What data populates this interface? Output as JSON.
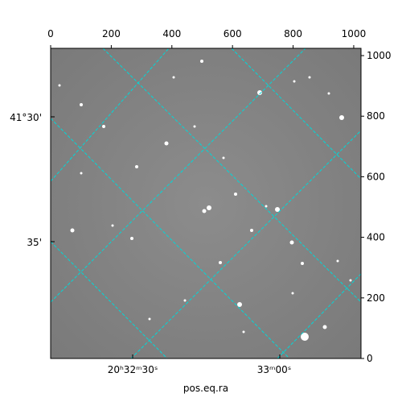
{
  "chart_data": {
    "type": "image",
    "xlabel": "pos.eq.ra",
    "xlim": [
      0,
      1024
    ],
    "xticks": [
      0,
      200,
      400,
      600,
      800,
      1000
    ],
    "ylim": [
      0,
      1024
    ],
    "yticks": [
      0,
      200,
      400,
      600,
      800,
      1000
    ],
    "wcs_xticks": [
      "20ʰ32ᵐ30ˢ",
      "33ᵐ00ˢ"
    ],
    "wcs_yticks": [
      "41°30'",
      "35'"
    ],
    "grid_color": "#00d8d8"
  }
}
